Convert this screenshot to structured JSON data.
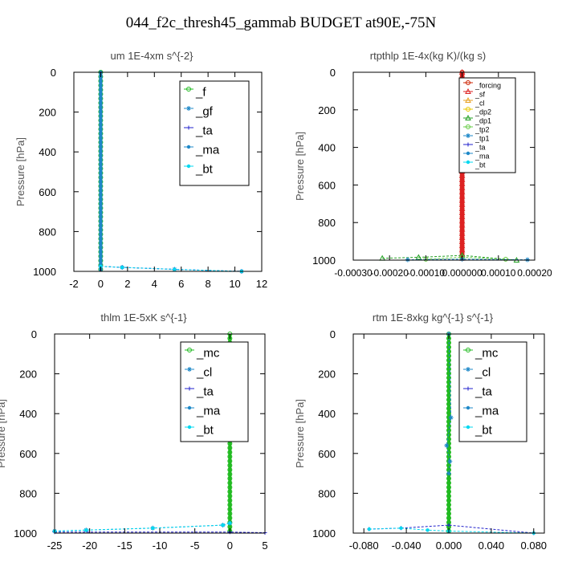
{
  "title": "044_f2c_thresh45_gammab  BUDGET at90E,-75N",
  "colors": {
    "mc": "#22bb22",
    "f": "#22bb22",
    "gf": "#1e88c8",
    "cl": "#1e88c8",
    "ta": "#2222cc",
    "ma": "#1e88c8",
    "bt": "#00d8f0",
    "forcing": "#cc2200",
    "sf": "#dd2222",
    "cl_orange": "#e8a020",
    "dp2": "#e8c800",
    "dp1": "#22a022",
    "tp2": "#66cc44",
    "tp1": "#1e88c8"
  },
  "chart_data": [
    {
      "type": "line",
      "title": "um   1E-4xm  s^{-2}",
      "ylabel": "Pressure [hPa]",
      "xlim": [
        -2,
        12
      ],
      "ylim": [
        1000,
        0
      ],
      "xticks": [
        -2,
        0,
        2,
        4,
        6,
        8,
        10,
        12
      ],
      "xtick_labels": [
        "-2",
        "0",
        "2",
        "4",
        "6",
        "8",
        "10",
        "12"
      ],
      "yticks": [
        0,
        200,
        400,
        600,
        800,
        1000
      ],
      "ytick_labels": [
        "0",
        "200",
        "400",
        "600",
        "800",
        "1000"
      ],
      "legend_position": "top-right",
      "legend": [
        "_f",
        "_gf",
        "_ta",
        "_ma",
        "_bt"
      ],
      "legend_keys": [
        "f",
        "gf",
        "ta",
        "ma",
        "bt"
      ],
      "series": [
        {
          "name": "_f",
          "key": "f",
          "x": [
            0,
            0
          ],
          "y": [
            0,
            1000
          ]
        },
        {
          "name": "_gf",
          "key": "gf",
          "x": [
            0,
            1.6,
            5.5,
            10.5
          ],
          "y": [
            975,
            980,
            990,
            1000
          ]
        },
        {
          "name": "_ta",
          "key": "ta",
          "x": [
            0,
            1.6,
            5.5,
            10.5
          ],
          "y": [
            975,
            980,
            990,
            1000
          ]
        },
        {
          "name": "_ma",
          "key": "ma",
          "x": [
            0,
            0
          ],
          "y": [
            0,
            1000
          ]
        },
        {
          "name": "_bt",
          "key": "bt",
          "x": [
            0,
            1.6,
            5.5,
            10.5
          ],
          "y": [
            975,
            980,
            990,
            1000
          ]
        }
      ]
    },
    {
      "type": "line",
      "title": "rtpthlp   1E-4x(kg K)/(kg s)",
      "ylabel": "Pressure [hPa]",
      "xlim": [
        -0.0003,
        0.0002
      ],
      "ylim": [
        1000,
        0
      ],
      "xticks": [
        -0.0003,
        -0.0002,
        -0.0001,
        0,
        0.0001,
        0.0002
      ],
      "xtick_labels": [
        "-0.00030",
        "-0.00020",
        "-0.00010",
        "0.000000",
        "0.00010",
        "0.00020"
      ],
      "yticks": [
        0,
        200,
        400,
        600,
        800,
        1000
      ],
      "ytick_labels": [
        "0",
        "200",
        "400",
        "600",
        "800",
        "1000"
      ],
      "legend_position": "top-right",
      "legend": [
        "_forcing",
        "_sf",
        "_cl",
        "_dp2",
        "_dp1",
        "_tp2",
        "_tp1",
        "_ta",
        "_ma",
        "_bt"
      ],
      "legend_keys": [
        "forcing",
        "sf",
        "cl_orange",
        "dp2",
        "dp1",
        "tp2",
        "tp1",
        "ta",
        "ma",
        "bt"
      ],
      "series": [
        {
          "name": "_forcing",
          "key": "forcing",
          "x": [
            0,
            0
          ],
          "y": [
            0,
            1000
          ]
        },
        {
          "name": "_sf",
          "key": "sf",
          "x": [
            0,
            0
          ],
          "y": [
            0,
            1000
          ]
        },
        {
          "name": "_dp1",
          "key": "dp1",
          "x": [
            -0.00022,
            -0.00012,
            0,
            0.00015
          ],
          "y": [
            990,
            985,
            975,
            1000
          ]
        },
        {
          "name": "_tp2",
          "key": "tp2",
          "x": [
            -0.0001,
            0,
            0.00012
          ],
          "y": [
            995,
            985,
            995
          ]
        },
        {
          "name": "_tp1",
          "key": "tp1",
          "x": [
            -0.00015,
            0,
            0.00018
          ],
          "y": [
            998,
            995,
            998
          ]
        }
      ]
    },
    {
      "type": "line",
      "title": "thlm   1E-5xK  s^{-1}",
      "ylabel": "Pressure [hPa]",
      "xlim": [
        -25,
        5
      ],
      "ylim": [
        1000,
        0
      ],
      "xticks": [
        -25,
        -20,
        -15,
        -10,
        -5,
        0,
        5
      ],
      "xtick_labels": [
        "-25",
        "-20",
        "-15",
        "-10",
        "-5",
        "0",
        "5"
      ],
      "yticks": [
        0,
        200,
        400,
        600,
        800,
        1000
      ],
      "ytick_labels": [
        "0",
        "200",
        "400",
        "600",
        "800",
        "1000"
      ],
      "legend_position": "top-right",
      "legend": [
        "_mc",
        "_cl",
        "_ta",
        "_ma",
        "_bt"
      ],
      "legend_keys": [
        "mc",
        "cl",
        "ta",
        "ma",
        "bt"
      ],
      "series": [
        {
          "name": "_mc",
          "key": "mc",
          "x": [
            0,
            0
          ],
          "y": [
            0,
            1000
          ]
        },
        {
          "name": "_cl",
          "key": "cl",
          "x": [
            -25,
            -20.5,
            -11,
            -1,
            0
          ],
          "y": [
            990,
            985,
            975,
            960,
            950
          ]
        },
        {
          "name": "_ta",
          "key": "ta",
          "x": [
            -25,
            0,
            5
          ],
          "y": [
            995,
            995,
            998
          ]
        },
        {
          "name": "_bt",
          "key": "bt",
          "x": [
            -25,
            -20.5,
            -11,
            -1,
            0
          ],
          "y": [
            990,
            985,
            975,
            960,
            950
          ]
        }
      ]
    },
    {
      "type": "line",
      "title": "rtm   1E-8xkg  kg^{-1}  s^{-1}",
      "ylabel": "Pressure [hPa]",
      "xlim": [
        -0.09,
        0.09
      ],
      "ylim": [
        1000,
        0
      ],
      "xticks": [
        -0.08,
        -0.04,
        0,
        0.04,
        0.08
      ],
      "xtick_labels": [
        "-0.080",
        "-0.040",
        "0.000",
        "0.040",
        "0.080"
      ],
      "yticks": [
        0,
        200,
        400,
        600,
        800,
        1000
      ],
      "ytick_labels": [
        "0",
        "200",
        "400",
        "600",
        "800",
        "1000"
      ],
      "legend_position": "top-right",
      "legend": [
        "_mc",
        "_cl",
        "_ta",
        "_ma",
        "_bt"
      ],
      "legend_keys": [
        "mc",
        "cl",
        "ta",
        "ma",
        "bt"
      ],
      "series": [
        {
          "name": "_mc",
          "key": "mc",
          "x": [
            0,
            0
          ],
          "y": [
            0,
            1000
          ]
        },
        {
          "name": "_cl",
          "key": "cl",
          "x": [
            0,
            0.002,
            -0.002,
            0.001,
            0
          ],
          "y": [
            0,
            420,
            560,
            640,
            700
          ]
        },
        {
          "name": "_ta",
          "key": "ta",
          "x": [
            -0.075,
            -0.045,
            0,
            0.08
          ],
          "y": [
            980,
            975,
            960,
            1000
          ]
        },
        {
          "name": "_bt",
          "key": "bt",
          "x": [
            -0.075,
            -0.045,
            -0.02,
            0,
            0.08
          ],
          "y": [
            980,
            975,
            985,
            990,
            1000
          ]
        }
      ]
    }
  ]
}
